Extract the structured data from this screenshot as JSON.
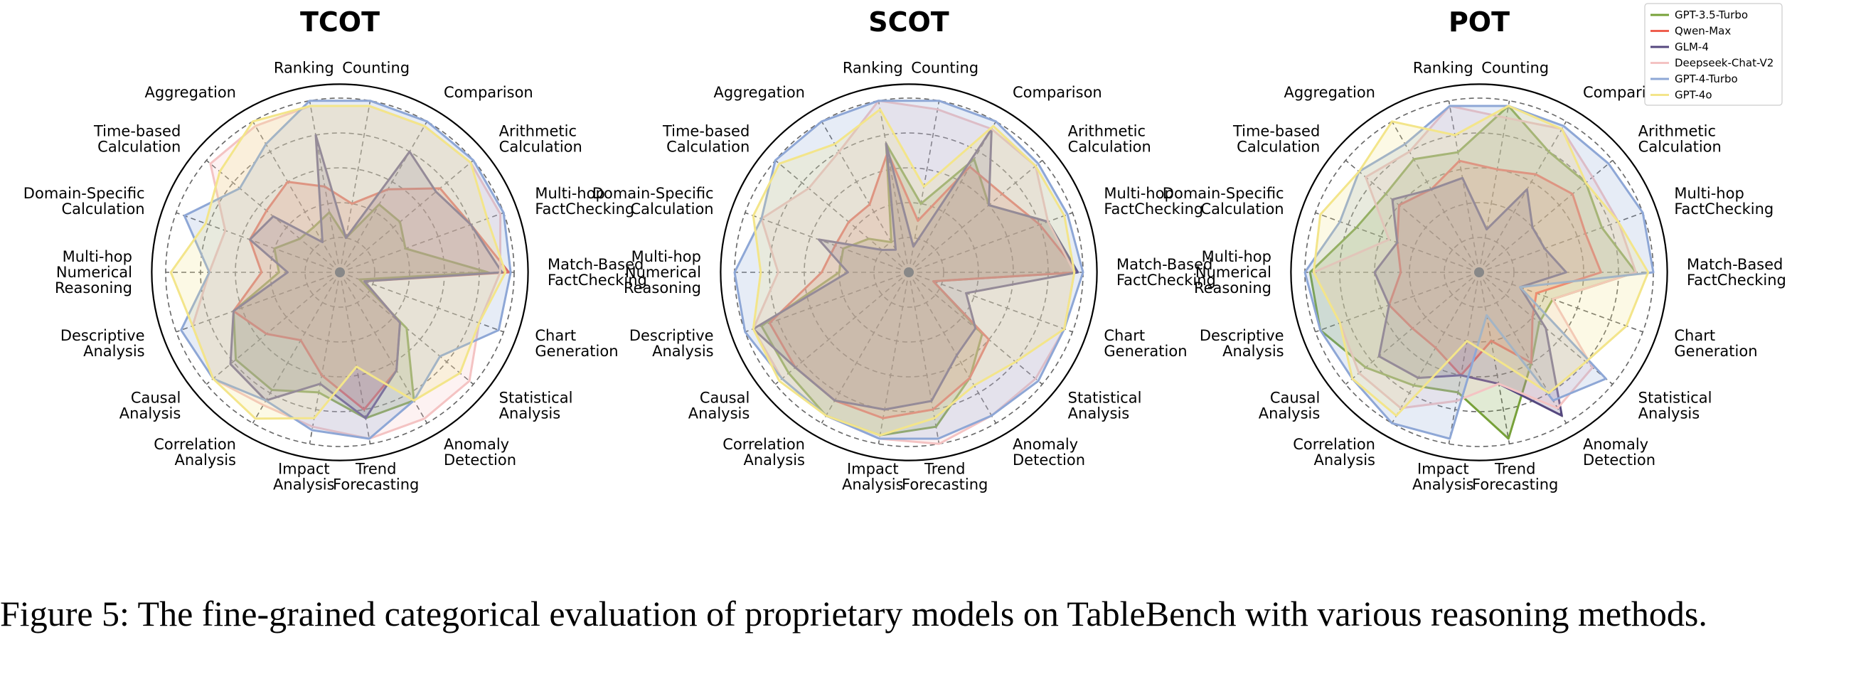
{
  "caption": "Figure 5: The fine-grained categorical evaluation of proprietary models on TableBench with various reasoning methods.",
  "chart_data": [
    {
      "type": "radar",
      "title": "TCOT",
      "categories": [
        "Match-Based FactChecking",
        "Multi-hop FactChecking",
        "Arithmetic Calculation",
        "Comparison",
        "Counting",
        "Ranking",
        "Aggregation",
        "Time-based Calculation",
        "Domain-Specific Calculation",
        "Multi-hop Numerical Reasoning",
        "Descriptive Analysis",
        "Causal Analysis",
        "Correlation Analysis",
        "Impact Analysis",
        "Trend Forecasting",
        "Anomaly Detection",
        "Statistical Analysis",
        "Chart Generation"
      ],
      "rlim": [
        0,
        1
      ],
      "grid": true,
      "series": [
        {
          "name": "GPT-3.5-Turbo",
          "values": [
            0.85,
            0.4,
            0.45,
            0.45,
            0.2,
            0.35,
            0.3,
            0.3,
            0.4,
            0.35,
            0.65,
            0.78,
            0.78,
            0.7,
            0.85,
            0.85,
            0.5,
            0.12
          ]
        },
        {
          "name": "Qwen-Max",
          "values": [
            0.97,
            0.8,
            0.75,
            0.55,
            0.4,
            0.5,
            0.6,
            0.55,
            0.55,
            0.45,
            0.65,
            0.55,
            0.45,
            0.6,
            0.8,
            0.65,
            0.45,
            0.15
          ]
        },
        {
          "name": "GLM-4",
          "values": [
            0.93,
            0.8,
            0.72,
            0.8,
            0.2,
            0.8,
            0.2,
            0.5,
            0.55,
            0.3,
            0.65,
            0.82,
            0.85,
            0.65,
            0.85,
            0.65,
            0.45,
            0.15
          ]
        },
        {
          "name": "Deepseek-Chat-V2",
          "values": [
            0.92,
            0.98,
            0.98,
            0.97,
            0.97,
            0.97,
            0.97,
            0.97,
            0.7,
            0.75,
            0.9,
            0.95,
            0.88,
            0.9,
            0.97,
            0.97,
            0.97,
            0.85
          ]
        },
        {
          "name": "GPT-4-Turbo",
          "values": [
            0.98,
            1.0,
            1.0,
            1.0,
            1.0,
            1.0,
            0.85,
            0.75,
            0.95,
            0.75,
            0.97,
            0.95,
            0.85,
            0.92,
            0.97,
            0.85,
            0.75,
            0.97
          ]
        },
        {
          "name": "GPT-4o",
          "values": [
            0.95,
            0.9,
            0.98,
            0.97,
            0.97,
            0.97,
            1.0,
            0.9,
            0.82,
            0.97,
            0.9,
            0.95,
            0.97,
            0.85,
            0.55,
            0.85,
            0.9,
            0.85
          ]
        }
      ]
    },
    {
      "type": "radar",
      "title": "SCOT",
      "categories": [
        "Match-Based FactChecking",
        "Multi-hop FactChecking",
        "Arithmetic Calculation",
        "Comparison",
        "Counting",
        "Ranking",
        "Aggregation",
        "Time-based Calculation",
        "Domain-Specific Calculation",
        "Multi-hop Numerical Reasoning",
        "Descriptive Analysis",
        "Causal Analysis",
        "Correlation Analysis",
        "Impact Analysis",
        "Trend Forecasting",
        "Anomaly Detection",
        "Statistical Analysis",
        "Chart Generation"
      ],
      "rlim": [
        0,
        1
      ],
      "grid": true,
      "series": [
        {
          "name": "GPT-3.5-Turbo",
          "values": [
            0.97,
            0.85,
            0.6,
            0.75,
            0.4,
            0.75,
            0.2,
            0.3,
            0.4,
            0.4,
            0.9,
            0.9,
            0.95,
            0.95,
            0.9,
            0.7,
            0.55,
            0.15
          ]
        },
        {
          "name": "Qwen-Max",
          "values": [
            0.97,
            0.8,
            0.7,
            0.7,
            0.3,
            0.7,
            0.45,
            0.45,
            0.45,
            0.5,
            0.85,
            0.85,
            0.85,
            0.85,
            0.8,
            0.7,
            0.6,
            0.15
          ]
        },
        {
          "name": "GLM-4",
          "values": [
            0.97,
            0.85,
            0.6,
            0.95,
            0.15,
            0.75,
            0.15,
            0.2,
            0.55,
            0.35,
            0.95,
            0.85,
            0.85,
            0.8,
            0.75,
            0.55,
            0.5,
            0.35
          ]
        },
        {
          "name": "Deepseek-Chat-V2",
          "values": [
            0.95,
            0.85,
            0.95,
            0.95,
            0.95,
            1.0,
            0.8,
            0.75,
            0.9,
            0.75,
            0.95,
            0.95,
            0.95,
            0.97,
            1.0,
            0.95,
            0.95,
            0.95
          ]
        },
        {
          "name": "GPT-4-Turbo",
          "values": [
            1.0,
            0.97,
            0.97,
            1.0,
            1.0,
            1.0,
            1.0,
            1.0,
            0.9,
            1.0,
            1.0,
            0.95,
            0.95,
            0.97,
            0.97,
            0.95,
            0.97,
            0.95
          ]
        },
        {
          "name": "GPT-4o",
          "values": [
            0.95,
            0.95,
            0.95,
            0.97,
            0.5,
            0.95,
            0.85,
            0.97,
            0.95,
            0.85,
            0.95,
            0.97,
            0.95,
            0.95,
            0.85,
            0.75,
            0.8,
            0.95
          ]
        }
      ]
    },
    {
      "type": "radar",
      "title": "POT",
      "categories": [
        "Match-Based FactChecking",
        "Multi-hop FactChecking",
        "Arithmetic Calculation",
        "Comparison",
        "Counting",
        "Ranking",
        "Aggregation",
        "Time-based Calculation",
        "Domain-Specific Calculation",
        "Multi-hop Numerical Reasoning",
        "Descriptive Analysis",
        "Causal Analysis",
        "Correlation Analysis",
        "Impact Analysis",
        "Trend Forecasting",
        "Anomaly Detection",
        "Statistical Analysis",
        "Chart Generation"
      ],
      "rlim": [
        0,
        1
      ],
      "grid": true,
      "series": [
        {
          "name": "GPT-3.5-Turbo",
          "values": [
            0.9,
            0.75,
            0.8,
            0.8,
            0.97,
            0.7,
            0.75,
            0.7,
            0.75,
            0.97,
            0.97,
            0.85,
            0.75,
            0.7,
            0.97,
            0.6,
            0.45,
            0.45
          ]
        },
        {
          "name": "Qwen-Max",
          "values": [
            0.7,
            0.65,
            0.7,
            0.65,
            0.6,
            0.65,
            0.55,
            0.6,
            0.5,
            0.45,
            0.55,
            0.5,
            0.5,
            0.6,
            0.4,
            0.6,
            0.4,
            0.35
          ]
        },
        {
          "name": "GLM-4",
          "values": [
            0.5,
            0.4,
            0.4,
            0.55,
            0.25,
            0.55,
            0.55,
            0.65,
            0.5,
            0.6,
            0.55,
            0.75,
            0.7,
            0.6,
            0.65,
            0.95,
            0.5,
            0.25
          ]
        },
        {
          "name": "Deepseek-Chat-V2",
          "values": [
            0.9,
            0.85,
            0.85,
            0.95,
            0.9,
            0.97,
            0.8,
            0.85,
            0.55,
            0.95,
            0.85,
            0.9,
            0.9,
            0.75,
            0.65,
            0.9,
            0.85,
            0.45
          ]
        },
        {
          "name": "GPT-4-Turbo",
          "values": [
            1.0,
            1.0,
            0.97,
            0.97,
            0.97,
            0.97,
            0.85,
            0.9,
            0.85,
            1.0,
            0.97,
            0.95,
            1.0,
            0.97,
            0.25,
            0.85,
            0.95,
            0.25
          ]
        },
        {
          "name": "GPT-4o",
          "values": [
            0.97,
            0.85,
            0.8,
            0.95,
            0.97,
            0.8,
            1.0,
            0.9,
            0.97,
            0.95,
            0.85,
            0.95,
            0.95,
            0.4,
            0.5,
            0.8,
            0.8,
            0.9
          ]
        }
      ]
    }
  ],
  "legend": {
    "placement": "top-right",
    "entries": [
      {
        "name": "GPT-3.5-Turbo",
        "color": "#77a139"
      },
      {
        "name": "Qwen-Max",
        "color": "#ee5e4f"
      },
      {
        "name": "GLM-4",
        "color": "#55487f"
      },
      {
        "name": "Deepseek-Chat-V2",
        "color": "#f4c3c3"
      },
      {
        "name": "GPT-4-Turbo",
        "color": "#8ea7d6"
      },
      {
        "name": "GPT-4o",
        "color": "#f3e58a"
      }
    ]
  }
}
